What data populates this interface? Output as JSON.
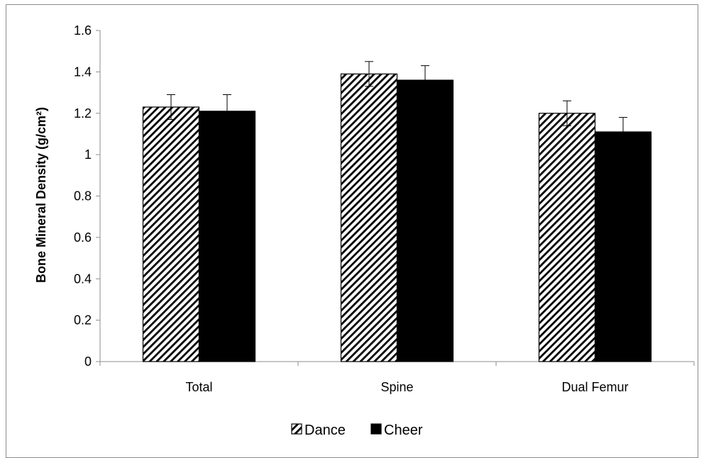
{
  "chart_data": {
    "type": "bar",
    "title": "",
    "xlabel": "",
    "ylabel": "Bone Mineral Density (g/cm²)",
    "ylim": [
      0,
      1.6
    ],
    "ytick_step": 0.2,
    "yticks": [
      "0",
      "0.2",
      "0.4",
      "0.6",
      "0.8",
      "1",
      "1.2",
      "1.4",
      "1.6"
    ],
    "grid": false,
    "legend_position": "bottom",
    "categories": [
      "Total",
      "Spine",
      "Dual Femur"
    ],
    "series": [
      {
        "name": "Dance",
        "values": [
          1.23,
          1.39,
          1.2
        ],
        "errors": [
          0.06,
          0.06,
          0.06
        ],
        "pattern": "diagonal-hatch",
        "color": "#000000"
      },
      {
        "name": "Cheer",
        "values": [
          1.21,
          1.36,
          1.11
        ],
        "errors": [
          0.08,
          0.07,
          0.07
        ],
        "pattern": "solid",
        "color": "#000000"
      }
    ]
  }
}
